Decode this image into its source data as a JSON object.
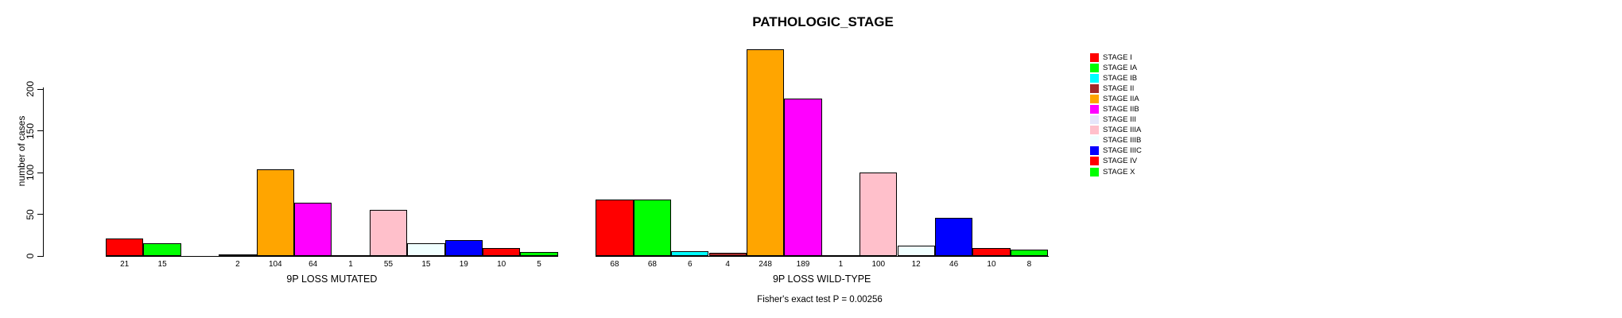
{
  "title": "PATHOLOGIC_STAGE",
  "footer": "Fisher's exact test P = 0.00256",
  "y_axis": {
    "label": "number of cases",
    "ticks": [
      0,
      50,
      100,
      150,
      200
    ]
  },
  "legend": {
    "items": [
      {
        "label": "STAGE I",
        "color": "#FF0000"
      },
      {
        "label": "STAGE IA",
        "color": "#00FF00"
      },
      {
        "label": "STAGE IB",
        "color": "#00FFFF"
      },
      {
        "label": "STAGE II",
        "color": "#A52A2A"
      },
      {
        "label": "STAGE IIA",
        "color": "#FFA500"
      },
      {
        "label": "STAGE IIB",
        "color": "#FF00FF"
      },
      {
        "label": "STAGE III",
        "color": "#E6E6FA"
      },
      {
        "label": "STAGE IIIA",
        "color": "#FFC0CB"
      },
      {
        "label": "STAGE IIIB",
        "color": "#F0FFFF"
      },
      {
        "label": "STAGE IIIC",
        "color": "#0000FF"
      },
      {
        "label": "STAGE IV",
        "color": "#FF0000"
      },
      {
        "label": "STAGE X",
        "color": "#00FF00"
      }
    ]
  },
  "chart_data": {
    "type": "bar",
    "title": "PATHOLOGIC_STAGE",
    "ylabel": "number of cases",
    "ylim": [
      0,
      200
    ],
    "yticks": [
      0,
      50,
      100,
      150,
      200
    ],
    "grid": false,
    "legend_position": "right",
    "categories": [
      "STAGE I",
      "STAGE IA",
      "STAGE IB",
      "STAGE II",
      "STAGE IIA",
      "STAGE IIB",
      "STAGE III",
      "STAGE IIIA",
      "STAGE IIIB",
      "STAGE IIIC",
      "STAGE IV",
      "STAGE X"
    ],
    "colors": [
      "#FF0000",
      "#00FF00",
      "#00FFFF",
      "#A52A2A",
      "#FFA500",
      "#FF00FF",
      "#E6E6FA",
      "#FFC0CB",
      "#F0FFFF",
      "#0000FF",
      "#FF0000",
      "#00FF00"
    ],
    "series": [
      {
        "name": "9P LOSS MUTATED",
        "values": [
          21,
          15,
          null,
          2,
          104,
          64,
          1,
          55,
          15,
          19,
          10,
          5
        ]
      },
      {
        "name": "9P LOSS WILD-TYPE",
        "values": [
          68,
          68,
          6,
          4,
          248,
          189,
          1,
          100,
          12,
          46,
          10,
          8
        ]
      }
    ],
    "annotation": "Fisher's exact test P = 0.00256"
  }
}
